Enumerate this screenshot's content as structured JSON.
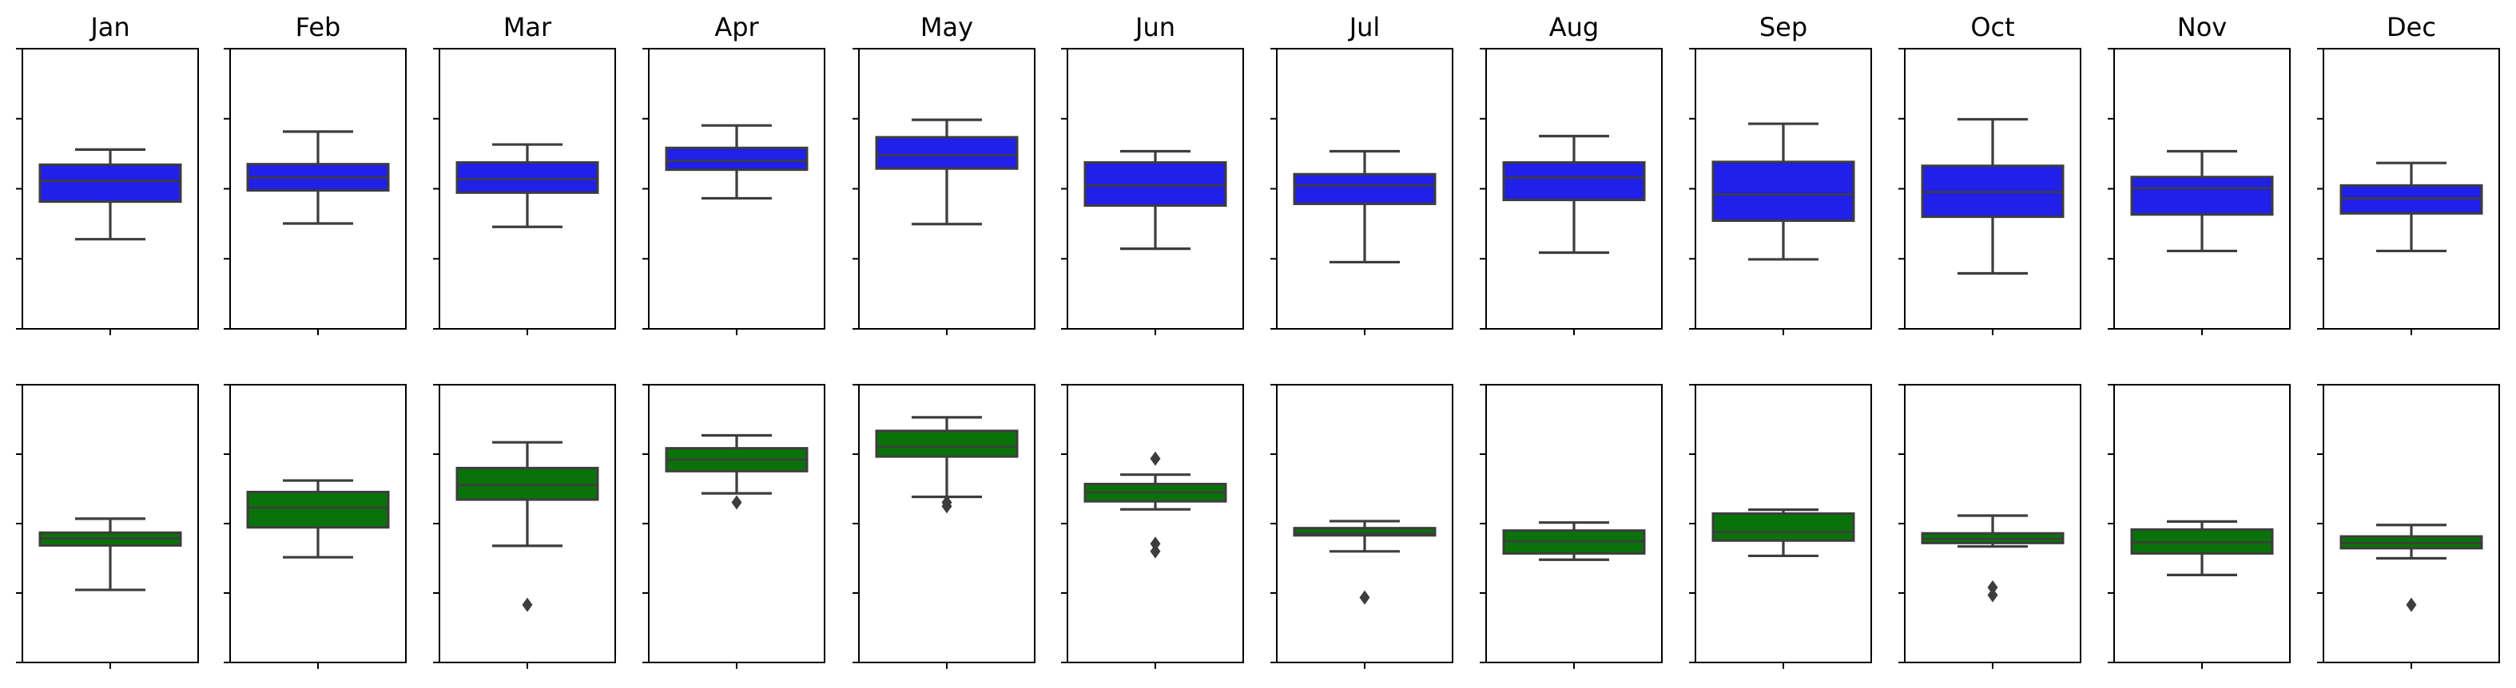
{
  "chart_data": {
    "type": "box",
    "grid": false,
    "colors": {
      "top_row": "#2020e8",
      "bottom_row": "#0a720a",
      "lines": "#3d3d3d"
    },
    "panels_top": [
      {
        "title": "Jan",
        "whislo": -0.4,
        "q1": 0.27,
        "med": 0.64,
        "q3": 0.93,
        "whishi": 1.2,
        "fliers": []
      },
      {
        "title": "Feb",
        "whislo": -0.12,
        "q1": 0.47,
        "med": 0.7,
        "q3": 0.94,
        "whishi": 1.52,
        "fliers": []
      },
      {
        "title": "Mar",
        "whislo": -0.18,
        "q1": 0.43,
        "med": 0.67,
        "q3": 0.97,
        "whishi": 1.29,
        "fliers": []
      },
      {
        "title": "Apr",
        "whislo": 0.33,
        "q1": 0.84,
        "med": 1.0,
        "q3": 1.23,
        "whishi": 1.63,
        "fliers": []
      },
      {
        "title": "May",
        "whislo": -0.13,
        "q1": 0.86,
        "med": 1.1,
        "q3": 1.42,
        "whishi": 1.73,
        "fliers": []
      },
      {
        "title": "Jun",
        "whislo": -0.57,
        "q1": 0.2,
        "med": 0.56,
        "q3": 0.97,
        "whishi": 1.17,
        "fliers": []
      },
      {
        "title": "Jul",
        "whislo": -0.81,
        "q1": 0.23,
        "med": 0.56,
        "q3": 0.76,
        "whishi": 1.17,
        "fliers": []
      },
      {
        "title": "Aug",
        "whislo": -0.64,
        "q1": 0.3,
        "med": 0.7,
        "q3": 0.97,
        "whishi": 1.44,
        "fliers": []
      },
      {
        "title": "Sep",
        "whislo": -0.76,
        "q1": -0.07,
        "med": 0.4,
        "q3": 0.98,
        "whishi": 1.66,
        "fliers": []
      },
      {
        "title": "Oct",
        "whislo": -1.01,
        "q1": 0.0,
        "med": 0.44,
        "q3": 0.91,
        "whishi": 1.74,
        "fliers": []
      },
      {
        "title": "Nov",
        "whislo": -0.61,
        "q1": 0.04,
        "med": 0.51,
        "q3": 0.71,
        "whishi": 1.17,
        "fliers": []
      },
      {
        "title": "Dec",
        "whislo": -0.61,
        "q1": 0.06,
        "med": 0.33,
        "q3": 0.56,
        "whishi": 0.96,
        "fliers": []
      }
    ],
    "panels_bottom": [
      {
        "title": "Jan",
        "whislo": -0.91,
        "q1": 0.37,
        "med": 0.57,
        "q3": 0.74,
        "whishi": 1.14,
        "fliers": []
      },
      {
        "title": "Feb",
        "whislo": 0.03,
        "q1": 0.89,
        "med": 1.46,
        "q3": 1.91,
        "whishi": 2.24,
        "fliers": []
      },
      {
        "title": "Mar",
        "whislo": 0.36,
        "q1": 1.69,
        "med": 2.11,
        "q3": 2.6,
        "whishi": 3.34,
        "fliers": [
          -1.34
        ]
      },
      {
        "title": "Apr",
        "whislo": 1.87,
        "q1": 2.51,
        "med": 2.84,
        "q3": 3.17,
        "whishi": 3.54,
        "fliers": [
          1.61
        ]
      },
      {
        "title": "May",
        "whislo": 1.77,
        "q1": 2.93,
        "med": 3.21,
        "q3": 3.67,
        "whishi": 4.06,
        "fliers": [
          1.5,
          1.61
        ]
      },
      {
        "title": "Jun",
        "whislo": 1.41,
        "q1": 1.64,
        "med": 1.9,
        "q3": 2.14,
        "whishi": 2.41,
        "fliers": [
          0.2,
          0.42,
          2.87
        ]
      },
      {
        "title": "Jul",
        "whislo": 0.2,
        "q1": 0.66,
        "med": 0.71,
        "q3": 0.87,
        "whishi": 1.07,
        "fliers": [
          -1.13
        ]
      },
      {
        "title": "Aug",
        "whislo": -0.04,
        "q1": 0.14,
        "med": 0.49,
        "q3": 0.8,
        "whishi": 1.03,
        "fliers": []
      },
      {
        "title": "Sep",
        "whislo": 0.07,
        "q1": 0.51,
        "med": 0.76,
        "q3": 1.29,
        "whishi": 1.4,
        "fliers": []
      },
      {
        "title": "Oct",
        "whislo": 0.34,
        "q1": 0.44,
        "med": 0.56,
        "q3": 0.72,
        "whishi": 1.23,
        "fliers": [
          -0.84,
          -1.06
        ]
      },
      {
        "title": "Nov",
        "whislo": -0.48,
        "q1": 0.14,
        "med": 0.46,
        "q3": 0.83,
        "whishi": 1.06,
        "fliers": []
      },
      {
        "title": "Dec",
        "whislo": 0.0,
        "q1": 0.29,
        "med": 0.44,
        "q3": 0.63,
        "whishi": 0.96,
        "fliers": [
          -1.34
        ]
      }
    ]
  }
}
